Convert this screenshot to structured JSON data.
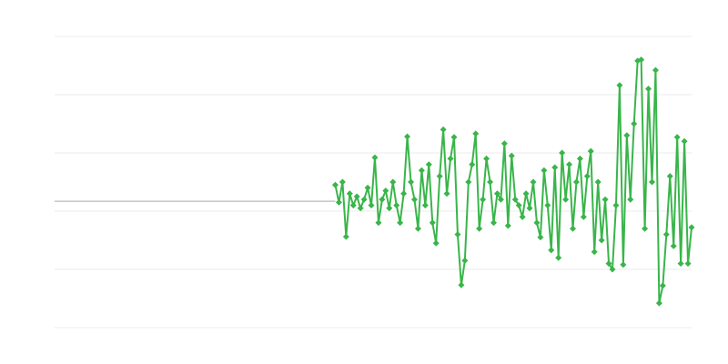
{
  "chart_data": {
    "type": "line",
    "title": "",
    "xlabel": "",
    "ylabel": "",
    "xlim": [
      0,
      177
    ],
    "ylim": [
      -2,
      3
    ],
    "y_gridlines": [
      -2,
      -1,
      0,
      1,
      2,
      3
    ],
    "grid": true,
    "reference_line": 0.17,
    "markers": "diamond",
    "colors": {
      "series": "#39b54a",
      "grid": "#ebebeb",
      "reference": "#aaaaaa"
    },
    "x_start": 78,
    "values": [
      0.45,
      0.15,
      0.5,
      -0.44,
      0.3,
      0.1,
      0.25,
      0.05,
      0.2,
      0.4,
      0.1,
      0.92,
      -0.2,
      0.2,
      0.35,
      0.05,
      0.5,
      0.1,
      -0.2,
      0.3,
      1.28,
      0.5,
      0.2,
      -0.3,
      0.7,
      0.1,
      0.8,
      -0.2,
      -0.55,
      0.6,
      1.4,
      0.3,
      0.9,
      1.27,
      -0.4,
      -1.27,
      -0.85,
      0.5,
      0.8,
      1.33,
      -0.3,
      0.2,
      0.9,
      0.5,
      -0.2,
      0.3,
      0.2,
      1.16,
      -0.25,
      0.95,
      0.2,
      0.1,
      -0.1,
      0.3,
      0.05,
      0.5,
      -0.2,
      -0.45,
      0.7,
      0.1,
      -0.67,
      0.75,
      -0.8,
      1.0,
      0.2,
      0.8,
      -0.3,
      0.5,
      0.9,
      -0.1,
      0.6,
      1.03,
      -0.7,
      0.5,
      -0.5,
      0.2,
      -0.9,
      -1.0,
      0.1,
      2.16,
      -0.92,
      1.3,
      0.2,
      1.5,
      2.58,
      2.6,
      -0.3,
      2.1,
      0.5,
      2.42,
      -1.58,
      -1.28,
      -0.4,
      0.6,
      -0.6,
      1.27,
      -0.9,
      1.2,
      -0.9,
      -0.28
    ]
  }
}
